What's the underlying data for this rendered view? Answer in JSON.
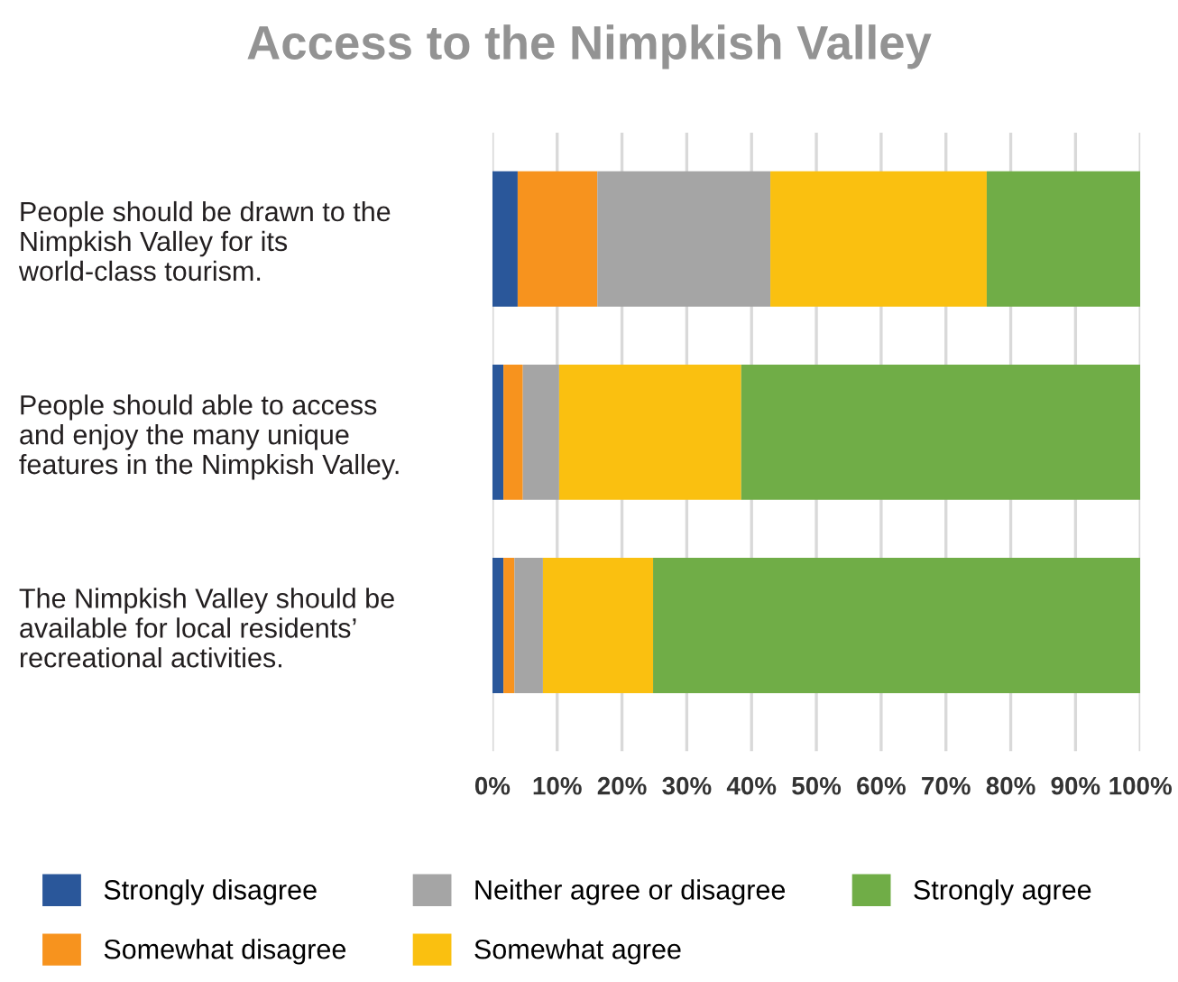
{
  "chart_data": {
    "type": "bar",
    "orientation": "horizontal",
    "stacked": true,
    "title": "Access to the Nimpkish Valley",
    "categories": [
      "People should be drawn to the\nNimpkish Valley for its\nworld-class tourism.",
      "People should able to access\nand enjoy the many unique\nfeatures in the Nimpkish Valley.",
      "The Nimpkish Valley should be\navailable for local residents’\nrecreational activities."
    ],
    "series": [
      {
        "name": "Strongly disagree",
        "color": "#2a579a",
        "values": [
          3.9,
          1.7,
          1.7
        ]
      },
      {
        "name": "Somewhat disagree",
        "color": "#f7931e",
        "values": [
          12.3,
          3.0,
          1.7
        ]
      },
      {
        "name": "Neither agree or disagree",
        "color": "#a5a5a5",
        "values": [
          26.7,
          5.6,
          4.4
        ]
      },
      {
        "name": "Somewhat agree",
        "color": "#fac010",
        "values": [
          33.4,
          28.1,
          17.0
        ]
      },
      {
        "name": "Strongly agree",
        "color": "#70ad47",
        "values": [
          23.7,
          61.6,
          75.2
        ]
      }
    ],
    "xlim": [
      0,
      100
    ],
    "xticks": [
      {
        "value": 0,
        "label": "0%"
      },
      {
        "value": 10,
        "label": "10%"
      },
      {
        "value": 20,
        "label": "20%"
      },
      {
        "value": 30,
        "label": "30%"
      },
      {
        "value": 40,
        "label": "40%"
      },
      {
        "value": 50,
        "label": "50%"
      },
      {
        "value": 60,
        "label": "60%"
      },
      {
        "value": 70,
        "label": "70%"
      },
      {
        "value": 80,
        "label": "80%"
      },
      {
        "value": 90,
        "label": "90%"
      },
      {
        "value": 100,
        "label": "100%"
      }
    ],
    "grid": "x",
    "legend": "bottom"
  }
}
